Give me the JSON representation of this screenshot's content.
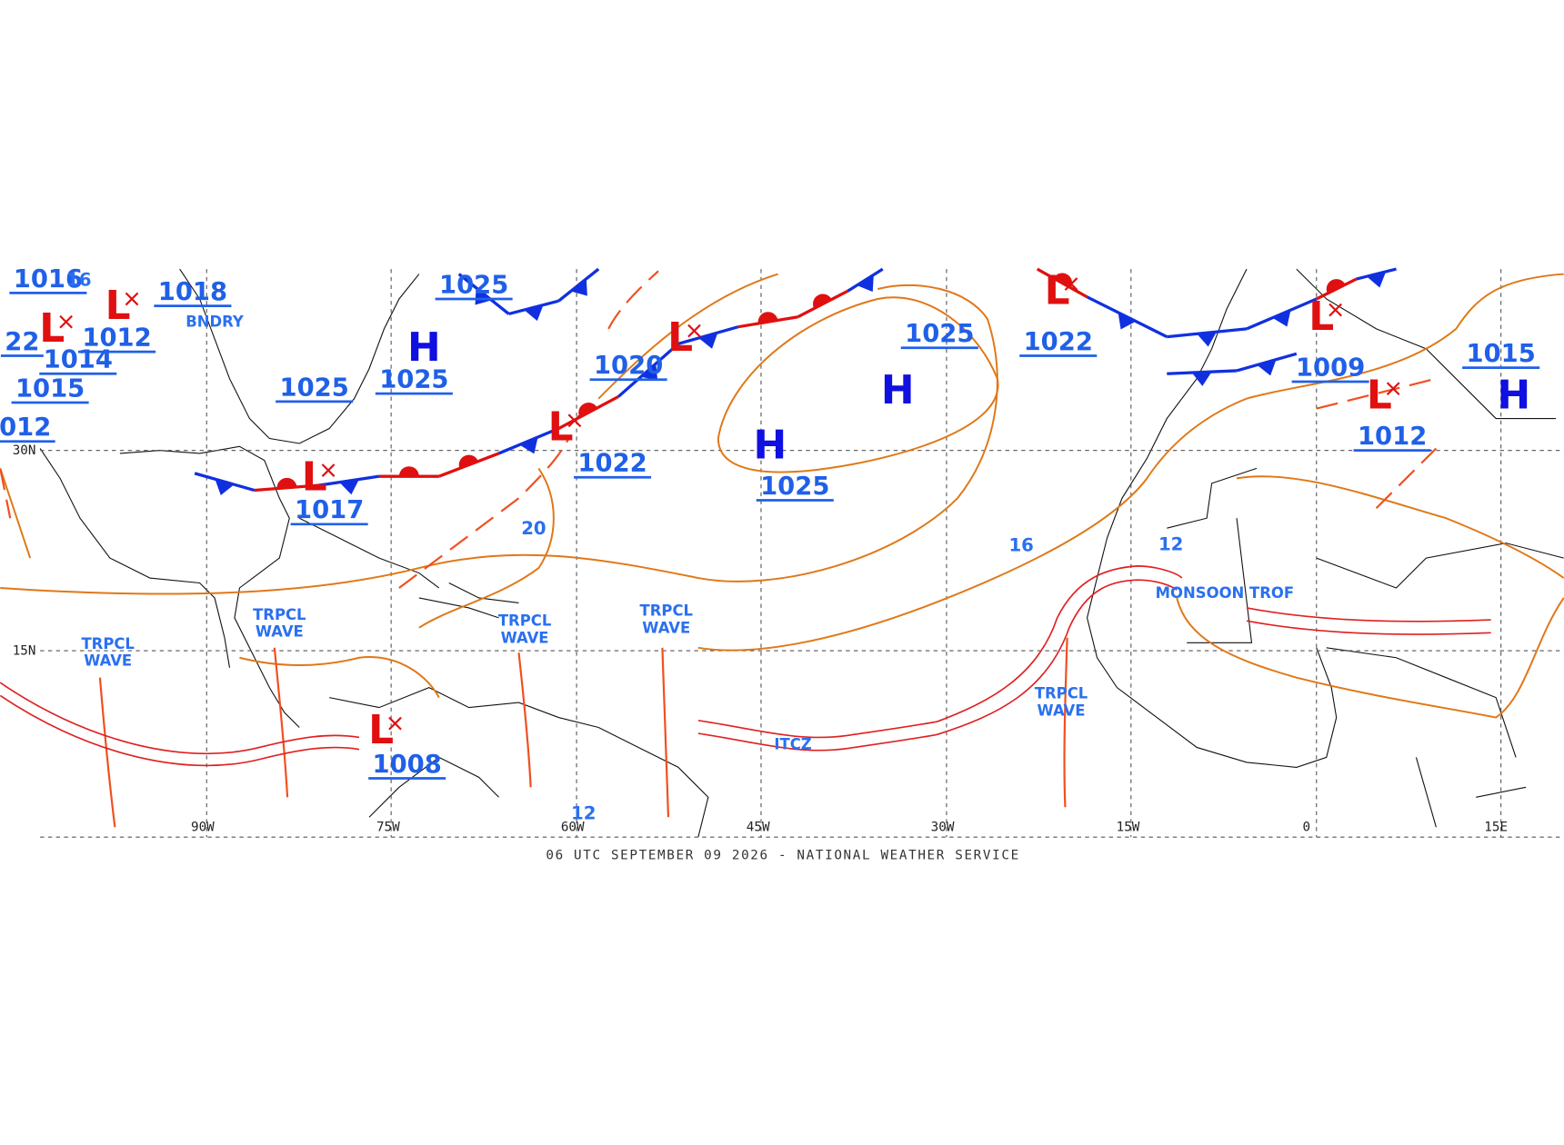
{
  "map": {
    "lon_labels": [
      "90W",
      "75W",
      "60W",
      "45W",
      "30W",
      "15W",
      "0",
      "15E"
    ],
    "lat_labels": [
      "30N",
      "15N"
    ],
    "highs": [
      "H",
      "H",
      "H",
      "H"
    ],
    "lows": [
      "L",
      "L",
      "L",
      "L",
      "L",
      "L",
      "L",
      "L",
      "L"
    ],
    "pressures": [
      "1016",
      "1018",
      "1012",
      "1014",
      "1015",
      "012",
      "22",
      "1025",
      "1025",
      "1025",
      "1017",
      "1020",
      "1022",
      "1025",
      "1025",
      "1022",
      "1009",
      "1012",
      "1015",
      "1008"
    ],
    "isobar_labels": [
      "16",
      "20",
      "16",
      "12",
      "12"
    ],
    "features": [
      "BNDRY",
      "TRPCL WAVE",
      "TRPCL WAVE",
      "TRPCL WAVE",
      "TRPCL WAVE",
      "TRPCL WAVE",
      "ITCZ",
      "MONSOON TROF"
    ],
    "footer": "06 UTC SEPTEMBER 09 2026 - NATIONAL WEATHER SERVICE"
  }
}
